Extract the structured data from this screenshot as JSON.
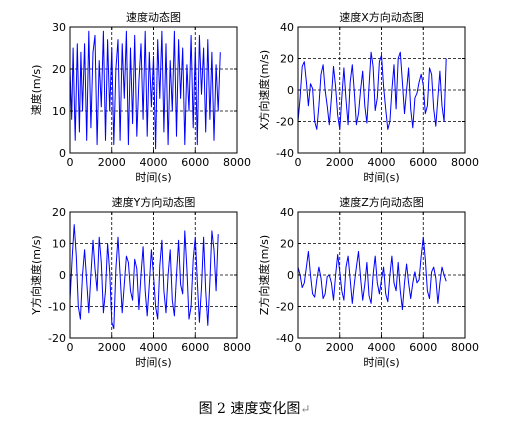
{
  "figure_caption": "图 2  速度变化图",
  "caption_mark": "↵",
  "chart_data": [
    {
      "type": "line",
      "title": "速度动态图",
      "xlabel": "时间(s)",
      "ylabel": "速度(m/s)",
      "xlim": [
        0,
        8000
      ],
      "ylim": [
        0,
        30
      ],
      "xticks": [
        0,
        2000,
        4000,
        6000,
        8000
      ],
      "yticks": [
        0,
        10,
        20,
        30
      ],
      "grid": true,
      "grid_style": "dashed",
      "series": [
        {
          "color": "#0000ff",
          "x": [
            0,
            80,
            150,
            250,
            350,
            450,
            520,
            600,
            700,
            800,
            900,
            1000,
            1100,
            1200,
            1300,
            1400,
            1500,
            1600,
            1700,
            1800,
            1900,
            2000,
            2100,
            2200,
            2300,
            2400,
            2500,
            2600,
            2700,
            2800,
            2900,
            3000,
            3100,
            3200,
            3300,
            3400,
            3500,
            3600,
            3700,
            3800,
            3900,
            4000,
            4100,
            4200,
            4300,
            4400,
            4500,
            4600,
            4700,
            4800,
            4900,
            5000,
            5100,
            5200,
            5300,
            5400,
            5500,
            5600,
            5700,
            5800,
            5900,
            6000,
            6100,
            6200,
            6300,
            6400,
            6500,
            6600,
            6700,
            6800,
            6900,
            7000,
            7100,
            7200
          ],
          "y": [
            20,
            8,
            25,
            3,
            26,
            5,
            24,
            10,
            26,
            3,
            29,
            6,
            24,
            28,
            2,
            22,
            11,
            29,
            3,
            27,
            10,
            25,
            2,
            20,
            27,
            3,
            26,
            13,
            29,
            2,
            25,
            7,
            28,
            4,
            17,
            26,
            8,
            29,
            4,
            24,
            11,
            23,
            1,
            27,
            13,
            29,
            5,
            26,
            2,
            22,
            10,
            29,
            4,
            27,
            13,
            25,
            2,
            21,
            10,
            28,
            6,
            25,
            2,
            28,
            14,
            25,
            5,
            27,
            8,
            24,
            3,
            21,
            10,
            24
          ]
        }
      ]
    },
    {
      "type": "line",
      "title": "速度X方向动态图",
      "xlabel": "时间(s)",
      "ylabel": "X方向速度(m/s)",
      "xlim": [
        0,
        8000
      ],
      "ylim": [
        -40,
        40
      ],
      "xticks": [
        0,
        2000,
        4000,
        6000,
        8000
      ],
      "yticks": [
        -40,
        -20,
        0,
        20,
        40
      ],
      "grid": true,
      "grid_style": "dashed",
      "series": [
        {
          "color": "#0000ff",
          "x": [
            0,
            100,
            200,
            300,
            400,
            500,
            600,
            700,
            800,
            900,
            1000,
            1100,
            1200,
            1300,
            1400,
            1500,
            1600,
            1700,
            1800,
            1900,
            2000,
            2100,
            2200,
            2300,
            2400,
            2500,
            2600,
            2700,
            2800,
            2900,
            3000,
            3100,
            3200,
            3300,
            3400,
            3500,
            3600,
            3700,
            3800,
            3900,
            4000,
            4100,
            4200,
            4300,
            4400,
            4500,
            4600,
            4700,
            4800,
            4900,
            5000,
            5100,
            5200,
            5300,
            5400,
            5500,
            5600,
            5700,
            5800,
            5900,
            6000,
            6100,
            6200,
            6300,
            6400,
            6500,
            6600,
            6700,
            6800,
            6900,
            7000,
            7100
          ],
          "y": [
            -20,
            -5,
            15,
            18,
            5,
            -10,
            4,
            1,
            -20,
            -25,
            -10,
            10,
            16,
            0,
            -10,
            -22,
            -5,
            15,
            2,
            -16,
            -25,
            -5,
            14,
            -6,
            -22,
            5,
            16,
            -2,
            -22,
            -15,
            0,
            12,
            -10,
            -21,
            2,
            24,
            15,
            -13,
            -5,
            18,
            22,
            2,
            -12,
            -25,
            -20,
            0,
            16,
            -12,
            20,
            24,
            5,
            -15,
            0,
            14,
            -12,
            -24,
            -5,
            -2,
            5,
            10,
            3,
            -15,
            -10,
            14,
            10,
            -12,
            -23,
            -5,
            12,
            -10,
            -20,
            20
          ]
        }
      ]
    },
    {
      "type": "line",
      "title": "速度Y方向动态图",
      "xlabel": "时间(s)",
      "ylabel": "Y方向速度(m/s)",
      "xlim": [
        0,
        8000
      ],
      "ylim": [
        -20,
        20
      ],
      "xticks": [
        0,
        2000,
        4000,
        6000,
        8000
      ],
      "yticks": [
        -20,
        -10,
        0,
        10,
        20
      ],
      "grid": true,
      "grid_style": "dashed",
      "series": [
        {
          "color": "#0000ff",
          "x": [
            0,
            100,
            200,
            300,
            400,
            500,
            600,
            700,
            800,
            900,
            1000,
            1100,
            1200,
            1300,
            1400,
            1500,
            1600,
            1700,
            1800,
            1900,
            2000,
            2100,
            2200,
            2300,
            2400,
            2500,
            2600,
            2700,
            2800,
            2900,
            3000,
            3100,
            3200,
            3300,
            3400,
            3500,
            3600,
            3700,
            3800,
            3900,
            4000,
            4100,
            4200,
            4300,
            4400,
            4500,
            4600,
            4700,
            4800,
            4900,
            5000,
            5100,
            5200,
            5300,
            5400,
            5500,
            5600,
            5700,
            5800,
            5900,
            6000,
            6100,
            6200,
            6300,
            6400,
            6500,
            6600,
            6700,
            6800,
            6900,
            7000,
            7100
          ],
          "y": [
            -8,
            5,
            16,
            6,
            -10,
            -14,
            0,
            8,
            -2,
            -12,
            0,
            11,
            2,
            -5,
            12,
            4,
            -12,
            -5,
            10,
            1,
            -15,
            -17,
            2,
            12,
            0,
            -12,
            -3,
            6,
            4,
            -5,
            -8,
            5,
            2,
            -11,
            0,
            9,
            -5,
            -13,
            -3,
            8,
            0,
            -10,
            -14,
            3,
            11,
            -5,
            -12,
            0,
            8,
            -8,
            -13,
            0,
            11,
            -3,
            -6,
            14,
            2,
            -14,
            -10,
            5,
            12,
            -2,
            -15,
            -4,
            12,
            -5,
            -16,
            -2,
            14,
            8,
            -5,
            13
          ]
        }
      ]
    },
    {
      "type": "line",
      "title": "速度Z方向动态图",
      "xlabel": "时间(s)",
      "ylabel": "Z方向速度(m/s)",
      "xlim": [
        0,
        8000
      ],
      "ylim": [
        -40,
        40
      ],
      "xticks": [
        0,
        2000,
        4000,
        6000,
        8000
      ],
      "yticks": [
        -40,
        -20,
        0,
        20,
        40
      ],
      "grid": true,
      "grid_style": "dashed",
      "series": [
        {
          "color": "#0000ff",
          "x": [
            0,
            100,
            200,
            300,
            400,
            500,
            600,
            700,
            800,
            900,
            1000,
            1100,
            1200,
            1300,
            1400,
            1500,
            1600,
            1700,
            1800,
            1900,
            2000,
            2100,
            2200,
            2300,
            2400,
            2500,
            2600,
            2700,
            2800,
            2900,
            3000,
            3100,
            3200,
            3300,
            3400,
            3500,
            3600,
            3700,
            3800,
            3900,
            4000,
            4100,
            4200,
            4300,
            4400,
            4500,
            4600,
            4700,
            4800,
            4900,
            5000,
            5100,
            5200,
            5300,
            5400,
            5500,
            5600,
            5700,
            5800,
            5900,
            6000,
            6100,
            6200,
            6300,
            6400,
            6500,
            6600,
            6700,
            6800,
            6900,
            7000,
            7100
          ],
          "y": [
            5,
            0,
            -8,
            -5,
            5,
            15,
            0,
            -12,
            -14,
            -3,
            5,
            -2,
            -15,
            -12,
            -1,
            0,
            -5,
            -16,
            0,
            13,
            2,
            -10,
            -16,
            5,
            12,
            -3,
            -18,
            -5,
            5,
            15,
            -2,
            -16,
            -6,
            8,
            -13,
            -18,
            0,
            12,
            -5,
            -12,
            -3,
            5,
            -12,
            -17,
            0,
            12,
            -5,
            -10,
            8,
            -10,
            -22,
            -5,
            7,
            -5,
            -15,
            -5,
            2,
            -5,
            -3,
            12,
            24,
            10,
            -10,
            -15,
            2,
            5,
            -2,
            -18,
            -5,
            5,
            0,
            -4
          ]
        }
      ]
    }
  ]
}
